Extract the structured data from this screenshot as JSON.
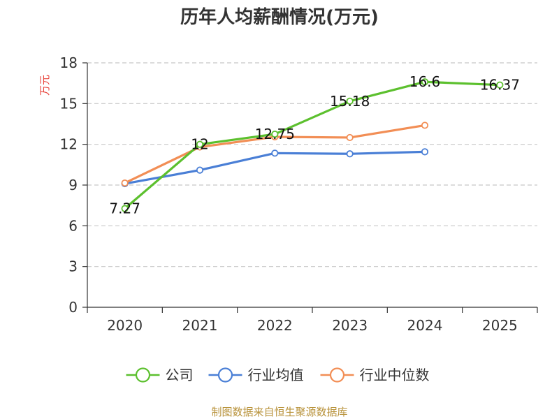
{
  "chart_data": {
    "type": "line",
    "title": "历年人均薪酬情况(万元)",
    "xlabel": "",
    "ylabel": "万元",
    "categories": [
      "2020",
      "2021",
      "2022",
      "2023",
      "2024",
      "2025"
    ],
    "ylim": [
      0,
      18
    ],
    "yticks": [
      0,
      3,
      6,
      9,
      12,
      15,
      18
    ],
    "ytick_labels": [
      "0",
      "3",
      "6",
      "9",
      "12",
      "15",
      "18"
    ],
    "grid": true,
    "legend_position": "bottom",
    "series": [
      {
        "name": "公司",
        "color": "#5cc02e",
        "values": [
          7.27,
          12,
          12.75,
          15.18,
          16.6,
          16.37
        ],
        "labels": [
          "7.27",
          "12",
          "12.75",
          "15.18",
          "16.6",
          "16.37"
        ]
      },
      {
        "name": "行业均值",
        "color": "#4a7fd6",
        "values": [
          9.1,
          10.1,
          11.35,
          11.3,
          11.45,
          null
        ]
      },
      {
        "name": "行业中位数",
        "color": "#f28e55",
        "values": [
          9.15,
          11.8,
          12.55,
          12.5,
          13.4,
          null
        ]
      }
    ]
  },
  "source_note": "制图数据来自恒生聚源数据库"
}
